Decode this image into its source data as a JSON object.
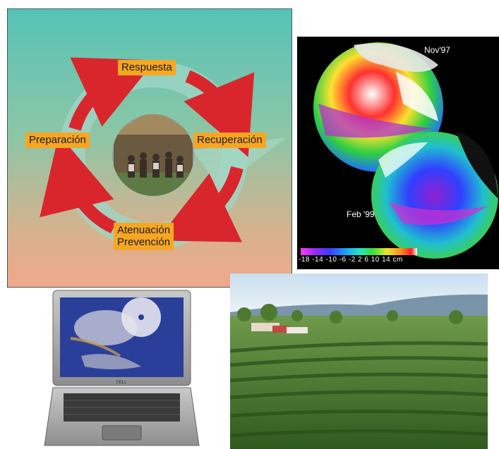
{
  "cycle": {
    "stages": {
      "respuesta": "Respuesta",
      "recuperacion": "Recuperación",
      "atenuacion_line1": "Atenuación",
      "atenuacion_line2": "Prevención",
      "preparacion": "Preparación"
    },
    "colors": {
      "arrow": "#d9262c",
      "label_bg": "#f7a623"
    }
  },
  "sst": {
    "label_top": "Nov'97",
    "label_bottom": "Feb '99",
    "scale_text": "-18 -14 -10 -6 -2 2 6 10 14 cm"
  },
  "laptop": {
    "brand": "DELL",
    "screen_image": "satellite-hurricane-image"
  },
  "field": {
    "subject": "coffee-plantation-photo"
  }
}
